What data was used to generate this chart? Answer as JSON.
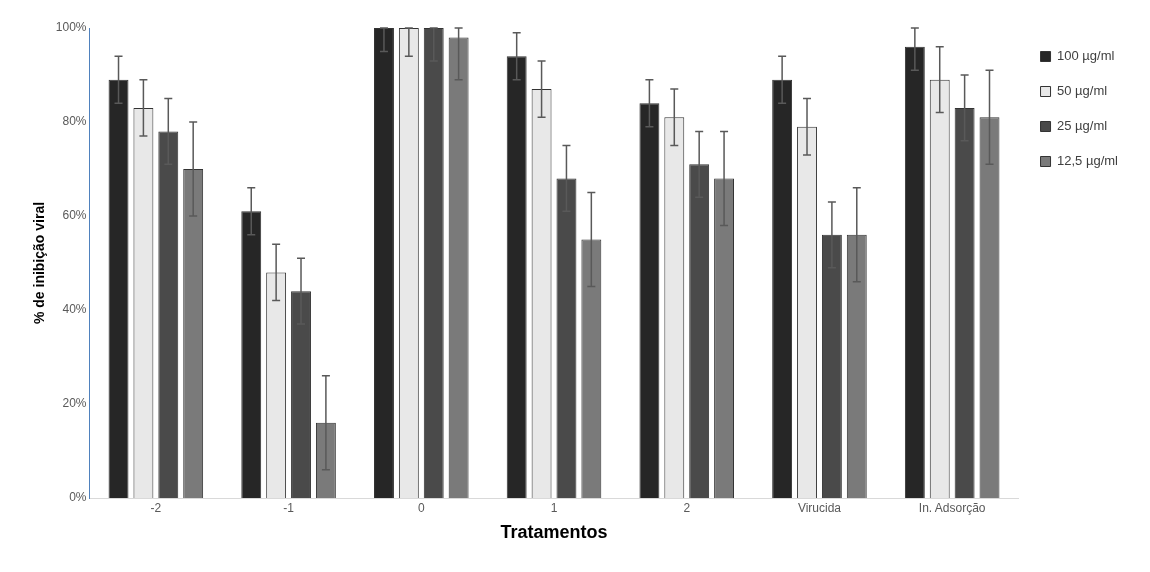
{
  "chart_data": {
    "type": "bar",
    "xlabel": "Tratamentos",
    "ylabel": "% de inibição viral",
    "categories": [
      "-2",
      "-1",
      "0",
      "1",
      "2",
      "Virucida",
      "In. Adsorção"
    ],
    "ylim": [
      0,
      100
    ],
    "yticks": [
      {
        "value": 0,
        "label": "0%"
      },
      {
        "value": 20,
        "label": "20%"
      },
      {
        "value": 40,
        "label": "40%"
      },
      {
        "value": 60,
        "label": "60%"
      },
      {
        "value": 80,
        "label": "80%"
      },
      {
        "value": 100,
        "label": "100%"
      }
    ],
    "grid": false,
    "legend": "right",
    "series": [
      {
        "name": "100 µg/ml",
        "color": "#262626",
        "values": [
          89,
          61,
          100,
          94,
          84,
          89,
          96
        ],
        "errors": [
          5,
          5,
          [
            95,
            100
          ],
          5,
          5,
          5,
          [
            91,
            100
          ]
        ]
      },
      {
        "name": "50 µg/ml",
        "color": "#e8e8e8",
        "values": [
          83,
          48,
          100,
          87,
          81,
          79,
          89
        ],
        "errors": [
          6,
          6,
          [
            94,
            100
          ],
          6,
          6,
          6,
          7
        ]
      },
      {
        "name": "25 µg/ml",
        "color": "#4a4a4a",
        "values": [
          78,
          44,
          100,
          68,
          71,
          56,
          83
        ],
        "errors": [
          7,
          7,
          [
            93,
            100
          ],
          7,
          7,
          7,
          7
        ]
      },
      {
        "name": "12,5 µg/ml",
        "color": "#7a7a7a",
        "values": [
          70,
          16,
          98,
          55,
          68,
          56,
          81
        ],
        "errors": [
          10,
          10,
          [
            89,
            100
          ],
          10,
          10,
          10,
          10
        ]
      }
    ]
  }
}
